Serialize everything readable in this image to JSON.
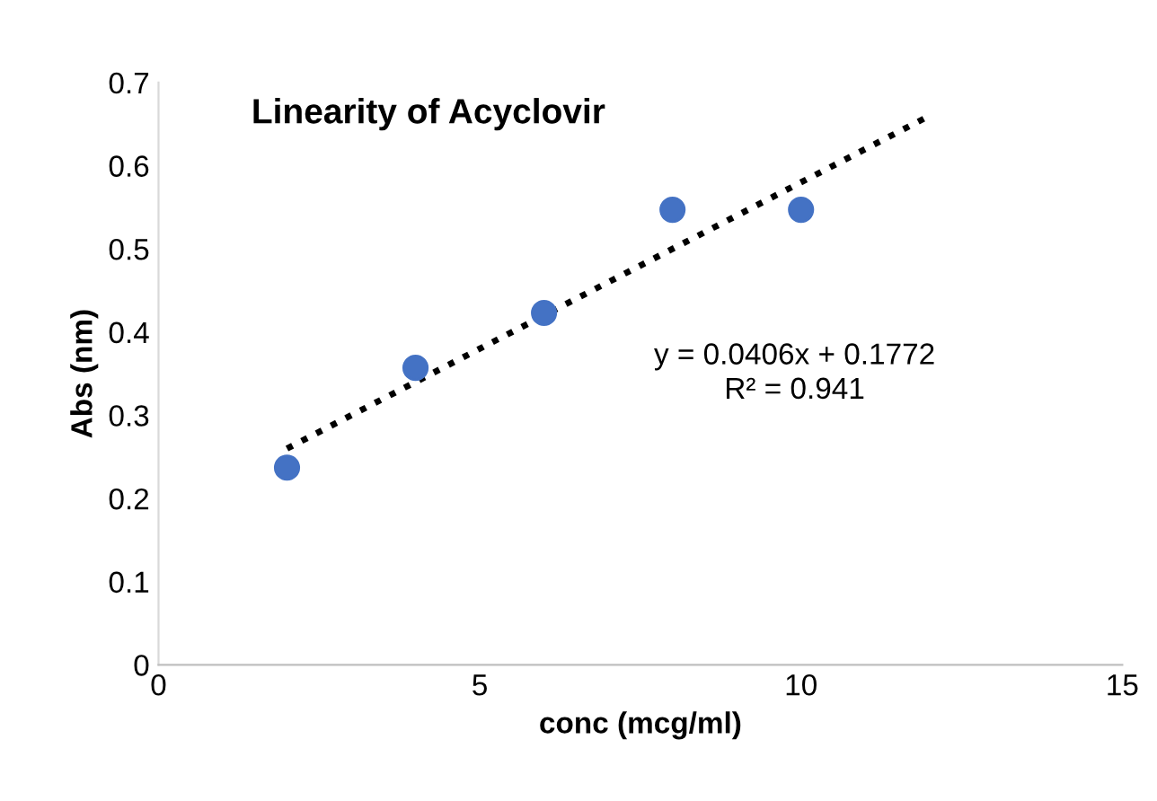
{
  "chart_data": {
    "type": "scatter",
    "title": "Linearity of Acyclovir",
    "xlabel": "conc (mcg/ml)",
    "ylabel": "Abs (nm)",
    "series": [
      {
        "color": "#4472c4",
        "x": [
          2,
          4,
          6,
          8,
          10
        ],
        "values": [
          0.237,
          0.357,
          0.423,
          0.547,
          0.547
        ],
        "marker": "circle"
      },
      {
        "type": "line",
        "color": "#000000",
        "x": [
          2,
          12
        ],
        "values": [
          0.26,
          0.66
        ],
        "line_style": "dotted",
        "marker": "none"
      }
    ],
    "annotations": [
      "y = 0.0406x + 0.1772\nR² = 0.941"
    ],
    "xlim": [
      0,
      15
    ],
    "xticks": [
      0,
      5,
      10,
      15
    ],
    "ylim": [
      0,
      0.7
    ],
    "yticks": [
      0,
      0.1,
      0.2,
      0.3,
      0.4,
      0.5,
      0.6,
      0.7
    ],
    "grid": false,
    "legend": false
  }
}
